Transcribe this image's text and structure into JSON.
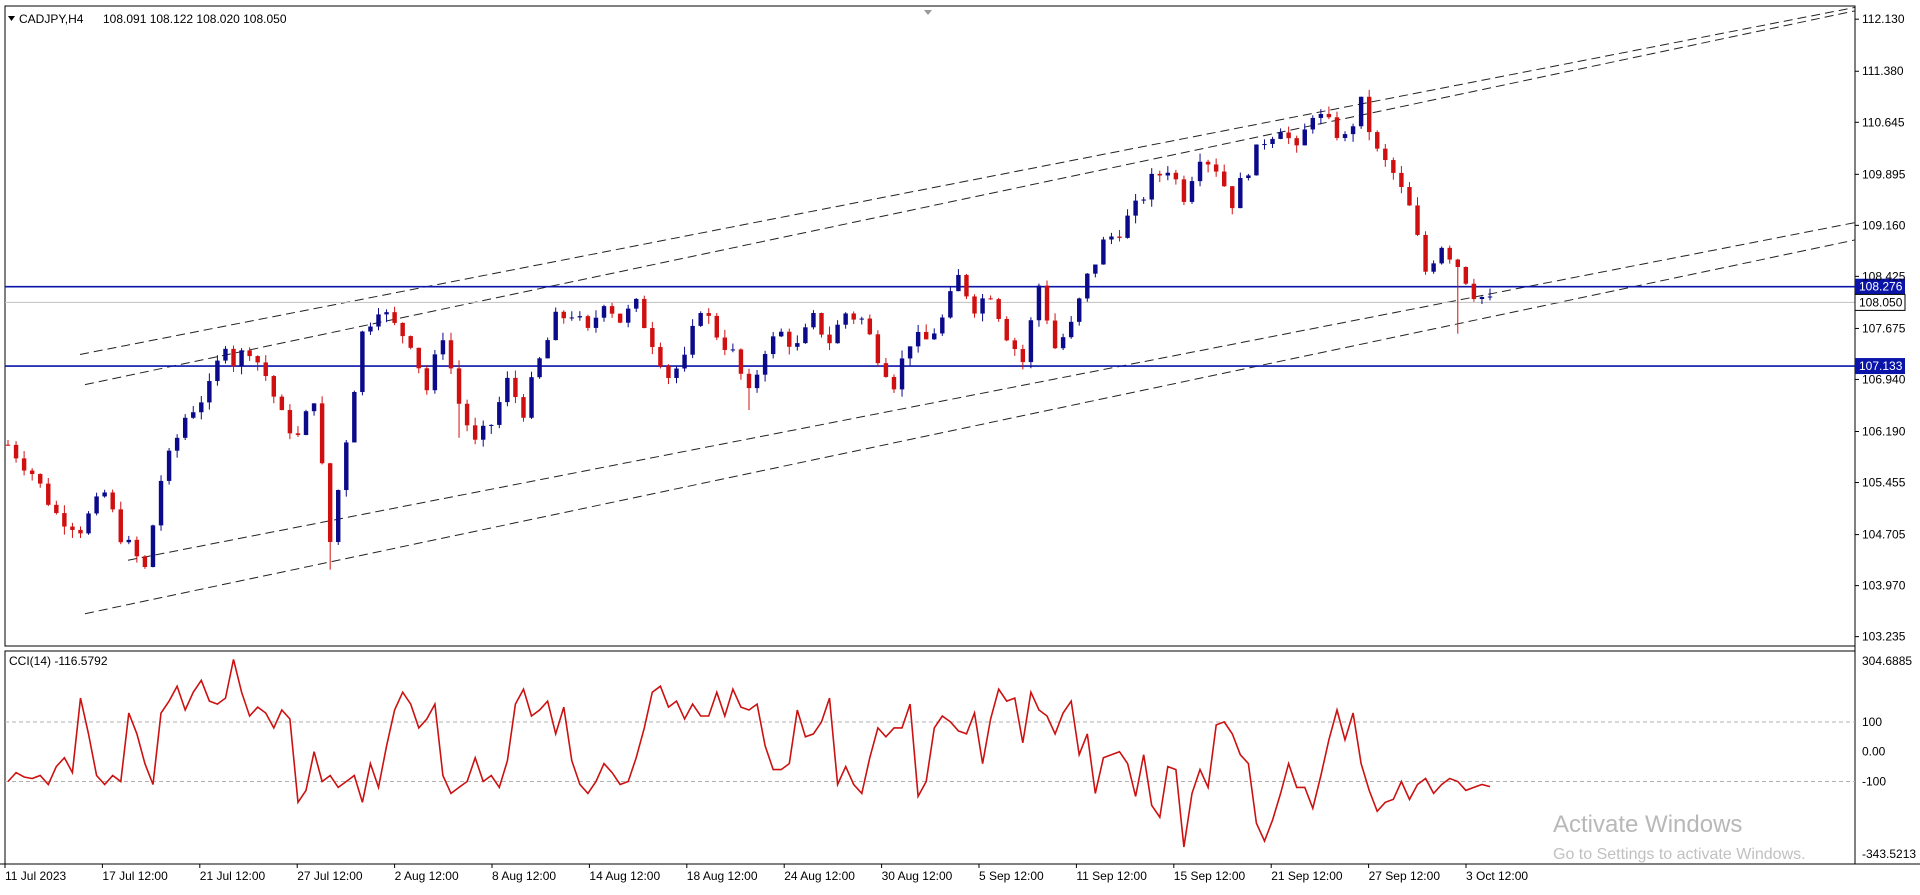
{
  "window": {
    "symbol_label": "CADJPY,H4",
    "ohlc": "108.091 108.122 108.020 108.050"
  },
  "colors": {
    "bull": "#0a0a8a",
    "bear": "#d01010",
    "level": "#0a14a8",
    "cci": "#cc1111"
  },
  "chart_data": {
    "type": "candlestick",
    "x_labels": [
      "11 Jul 2023",
      "17 Jul 12:00",
      "21 Jul 12:00",
      "27 Jul 12:00",
      "2 Aug 12:00",
      "8 Aug 12:00",
      "14 Aug 12:00",
      "18 Aug 12:00",
      "24 Aug 12:00",
      "30 Aug 12:00",
      "5 Sep 12:00",
      "11 Sep 12:00",
      "15 Sep 12:00",
      "21 Sep 12:00",
      "27 Sep 12:00",
      "3 Oct 12:00"
    ],
    "price_ticks": [
      "112.130",
      "111.380",
      "110.645",
      "109.895",
      "109.160",
      "108.425",
      "107.675",
      "106.940",
      "106.190",
      "105.455",
      "104.705",
      "103.970",
      "103.235"
    ],
    "ylim": [
      103.1,
      112.32
    ],
    "horizontal_levels": [
      {
        "label": "108.276",
        "value": 108.276
      },
      {
        "label": "107.133",
        "value": 107.133
      }
    ],
    "current_price": {
      "label": "108.050",
      "value": 108.05
    },
    "trend_lines": [
      {
        "from": [
          0,
          107.3
        ],
        "to": [
          1,
          112.3
        ]
      },
      {
        "from": [
          0,
          106.85
        ],
        "to": [
          1,
          112.25
        ]
      },
      {
        "from": [
          0,
          104.2
        ],
        "to": [
          1,
          109.2
        ]
      },
      {
        "from": [
          0,
          103.55
        ],
        "to": [
          1,
          108.95
        ]
      }
    ],
    "trend_x_fraction_start": 0.0,
    "price_path": [
      [
        0,
        106.0
      ],
      [
        3,
        105.6
      ],
      [
        6,
        105.0
      ],
      [
        9,
        104.8
      ],
      [
        12,
        105.3
      ],
      [
        14,
        104.7
      ],
      [
        17,
        104.2
      ],
      [
        19,
        105.5
      ],
      [
        22,
        106.4
      ],
      [
        25,
        106.8
      ],
      [
        27,
        107.5
      ],
      [
        28,
        107.2
      ],
      [
        30,
        107.4
      ],
      [
        32,
        107.0
      ],
      [
        34,
        106.4
      ],
      [
        36,
        106.1
      ],
      [
        38,
        106.7
      ],
      [
        40,
        104.6
      ],
      [
        42,
        106.1
      ],
      [
        44,
        107.6
      ],
      [
        46,
        108.0
      ],
      [
        48,
        107.7
      ],
      [
        50,
        107.5
      ],
      [
        52,
        106.8
      ],
      [
        54,
        107.6
      ],
      [
        56,
        106.6
      ],
      [
        58,
        106.0
      ],
      [
        60,
        106.3
      ],
      [
        62,
        106.9
      ],
      [
        64,
        106.5
      ],
      [
        66,
        107.2
      ],
      [
        68,
        107.8
      ],
      [
        70,
        107.9
      ],
      [
        72,
        107.6
      ],
      [
        74,
        108.1
      ],
      [
        76,
        107.8
      ],
      [
        78,
        108.0
      ],
      [
        80,
        107.5
      ],
      [
        82,
        107.0
      ],
      [
        84,
        107.2
      ],
      [
        86,
        108.0
      ],
      [
        88,
        107.6
      ],
      [
        90,
        107.3
      ],
      [
        92,
        106.7
      ],
      [
        94,
        107.4
      ],
      [
        96,
        107.6
      ],
      [
        98,
        107.4
      ],
      [
        100,
        107.8
      ],
      [
        102,
        107.5
      ],
      [
        104,
        107.9
      ],
      [
        106,
        107.8
      ],
      [
        108,
        107.3
      ],
      [
        110,
        106.9
      ],
      [
        112,
        107.5
      ],
      [
        114,
        107.5
      ],
      [
        116,
        107.8
      ],
      [
        118,
        108.4
      ],
      [
        120,
        108.0
      ],
      [
        122,
        108.2
      ],
      [
        124,
        107.6
      ],
      [
        126,
        107.2
      ],
      [
        128,
        108.3
      ],
      [
        130,
        107.4
      ],
      [
        132,
        107.7
      ],
      [
        134,
        108.4
      ],
      [
        136,
        108.9
      ],
      [
        138,
        109.1
      ],
      [
        140,
        109.4
      ],
      [
        142,
        109.8
      ],
      [
        144,
        110.0
      ],
      [
        146,
        109.6
      ],
      [
        148,
        110.2
      ],
      [
        150,
        110.0
      ],
      [
        152,
        109.5
      ],
      [
        154,
        110.0
      ],
      [
        156,
        110.4
      ],
      [
        158,
        110.6
      ],
      [
        160,
        110.2
      ],
      [
        162,
        110.8
      ],
      [
        164,
        110.6
      ],
      [
        166,
        110.4
      ],
      [
        168,
        110.9
      ],
      [
        170,
        110.2
      ],
      [
        172,
        109.9
      ],
      [
        174,
        109.4
      ],
      [
        176,
        108.5
      ],
      [
        178,
        108.9
      ],
      [
        180,
        108.6
      ],
      [
        182,
        108.2
      ],
      [
        184,
        108.05
      ]
    ],
    "wicks": [
      [
        40,
        104.2
      ],
      [
        56,
        106.1
      ],
      [
        58,
        106.3
      ],
      [
        92,
        106.5
      ],
      [
        126,
        107.1
      ],
      [
        180,
        107.6
      ]
    ],
    "n_candles": 185,
    "cci": {
      "label": "CCI(14) -116.5792",
      "ticks": [
        "304.6885",
        "100",
        "0.00",
        "-100",
        "-343.5213"
      ],
      "ylim": [
        -343.5213,
        304.6885
      ],
      "levels": [
        100,
        -100
      ],
      "values": [
        -100,
        -70,
        -85,
        -90,
        -80,
        -110,
        -50,
        -20,
        -70,
        180,
        60,
        -80,
        -110,
        -80,
        -100,
        130,
        60,
        -40,
        -110,
        130,
        170,
        220,
        140,
        200,
        240,
        170,
        160,
        180,
        310,
        200,
        120,
        150,
        130,
        80,
        140,
        110,
        -170,
        -130,
        0,
        -100,
        -80,
        -120,
        -100,
        -80,
        -170,
        -40,
        -120,
        20,
        140,
        200,
        160,
        80,
        110,
        160,
        -80,
        -140,
        -120,
        -100,
        -20,
        -100,
        -80,
        -120,
        -30,
        160,
        210,
        120,
        140,
        170,
        60,
        150,
        -30,
        -110,
        -140,
        -100,
        -40,
        -70,
        -110,
        -100,
        -20,
        80,
        200,
        220,
        150,
        170,
        110,
        160,
        120,
        120,
        200,
        120,
        210,
        150,
        140,
        160,
        20,
        -60,
        -60,
        -40,
        140,
        50,
        60,
        100,
        180,
        -110,
        -50,
        -110,
        -140,
        -20,
        80,
        50,
        80,
        80,
        160,
        -150,
        -100,
        80,
        120,
        100,
        70,
        60,
        130,
        -40,
        110,
        210,
        170,
        180,
        30,
        200,
        140,
        120,
        60,
        130,
        170,
        -10,
        60,
        -140,
        -20,
        -10,
        0,
        -40,
        -150,
        -10,
        -180,
        -220,
        -50,
        -60,
        -320,
        -140,
        -60,
        -120,
        90,
        100,
        60,
        -10,
        -40,
        -240,
        -300,
        -230,
        -140,
        -40,
        -120,
        -120,
        -190,
        -80,
        40,
        140,
        40,
        130,
        -40,
        -130,
        -200,
        -170,
        -160,
        -100,
        -160,
        -110,
        -90,
        -140,
        -110,
        -90,
        -100,
        -130,
        -120,
        -110,
        -117
      ]
    }
  },
  "watermark": {
    "line1": "Activate Windows",
    "line2": "Go to Settings to activate Windows."
  }
}
